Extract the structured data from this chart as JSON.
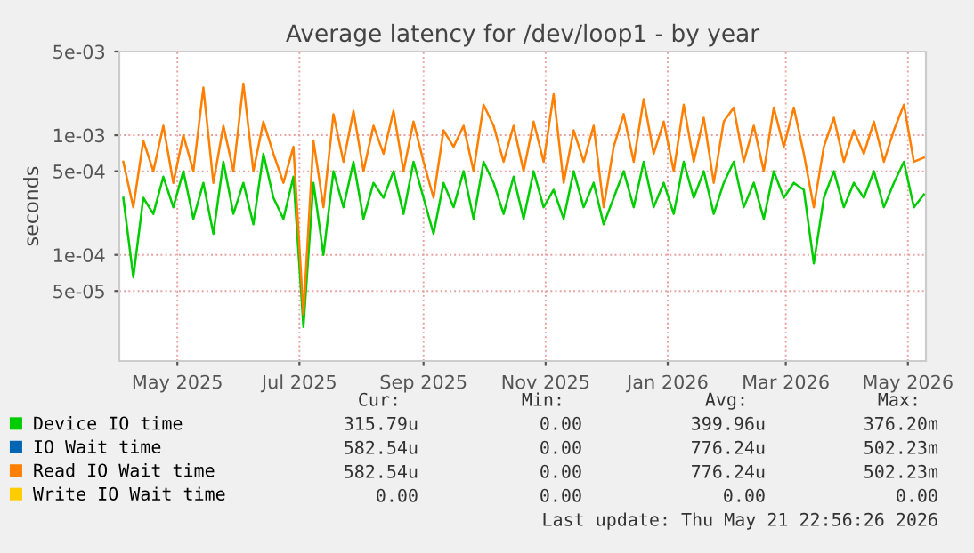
{
  "chart_data": {
    "type": "line",
    "title": "Average latency for /dev/loop1 - by year",
    "ylabel": "seconds",
    "x": [
      "2025-04-04",
      "2025-04-09",
      "2025-04-14",
      "2025-04-19",
      "2025-04-24",
      "2025-04-29",
      "2025-05-04",
      "2025-05-09",
      "2025-05-14",
      "2025-05-19",
      "2025-05-24",
      "2025-05-29",
      "2025-06-03",
      "2025-06-08",
      "2025-06-13",
      "2025-06-18",
      "2025-06-23",
      "2025-06-28",
      "2025-07-03",
      "2025-07-08",
      "2025-07-13",
      "2025-07-18",
      "2025-07-23",
      "2025-07-28",
      "2025-08-02",
      "2025-08-07",
      "2025-08-12",
      "2025-08-17",
      "2025-08-22",
      "2025-08-27",
      "2025-09-01",
      "2025-09-06",
      "2025-09-11",
      "2025-09-16",
      "2025-09-21",
      "2025-09-26",
      "2025-10-01",
      "2025-10-06",
      "2025-10-11",
      "2025-10-16",
      "2025-10-21",
      "2025-10-26",
      "2025-10-31",
      "2025-11-05",
      "2025-11-10",
      "2025-11-15",
      "2025-11-20",
      "2025-11-25",
      "2025-11-30",
      "2025-12-05",
      "2025-12-10",
      "2025-12-15",
      "2025-12-20",
      "2025-12-25",
      "2025-12-30",
      "2026-01-04",
      "2026-01-09",
      "2026-01-14",
      "2026-01-19",
      "2026-01-24",
      "2026-01-29",
      "2026-02-03",
      "2026-02-08",
      "2026-02-13",
      "2026-02-18",
      "2026-02-23",
      "2026-02-28",
      "2026-03-05",
      "2026-03-10",
      "2026-03-15",
      "2026-03-20",
      "2026-03-25",
      "2026-03-30",
      "2026-04-04",
      "2026-04-09",
      "2026-04-14",
      "2026-04-19",
      "2026-04-24",
      "2026-04-29",
      "2026-05-04",
      "2026-05-09"
    ],
    "series": [
      {
        "name": "Device IO time",
        "color": "#00cc00",
        "values": [
          0.0003,
          6.5e-05,
          0.0003,
          0.00022,
          0.00045,
          0.00025,
          0.0005,
          0.0002,
          0.0004,
          0.00015,
          0.0006,
          0.00022,
          0.0004,
          0.00018,
          0.0007,
          0.0003,
          0.0002,
          0.00045,
          2.5e-05,
          0.0004,
          0.0001,
          0.0005,
          0.00025,
          0.0006,
          0.0002,
          0.0004,
          0.0003,
          0.0005,
          0.00022,
          0.0006,
          0.0003,
          0.00015,
          0.0004,
          0.00025,
          0.0005,
          0.0002,
          0.0006,
          0.0004,
          0.00022,
          0.00045,
          0.0002,
          0.0005,
          0.00025,
          0.00035,
          0.0002,
          0.0005,
          0.00025,
          0.0004,
          0.00018,
          0.0003,
          0.0005,
          0.00025,
          0.0006,
          0.00025,
          0.0004,
          0.00022,
          0.0006,
          0.0003,
          0.0005,
          0.00022,
          0.0004,
          0.0006,
          0.00025,
          0.0004,
          0.0002,
          0.0005,
          0.0003,
          0.0004,
          0.00035,
          8.5e-05,
          0.0003,
          0.0005,
          0.00025,
          0.0004,
          0.0003,
          0.0005,
          0.00025,
          0.0004,
          0.0006,
          0.00025,
          0.00032
        ]
      },
      {
        "name": "IO Wait time",
        "color": "#0066b3",
        "values": [
          null,
          null,
          null,
          null,
          null,
          null,
          null,
          null,
          null,
          null,
          null,
          null,
          null,
          null,
          null,
          null,
          null,
          null,
          null,
          null,
          null,
          null,
          null,
          null,
          null,
          null,
          null,
          null,
          null,
          null,
          null,
          null,
          null,
          null,
          null,
          null,
          null,
          null,
          null,
          null,
          null,
          null,
          null,
          null,
          null,
          null,
          null,
          null,
          null,
          null,
          null,
          null,
          null,
          null,
          null,
          null,
          null,
          null,
          null,
          null,
          null,
          null,
          null,
          null,
          null,
          null,
          null,
          null,
          null,
          null,
          null,
          null,
          null,
          null,
          null,
          null,
          null,
          null,
          null,
          null,
          null
        ]
      },
      {
        "name": "Read IO Wait time",
        "color": "#ff7f00",
        "values": [
          0.0006,
          0.00025,
          0.0009,
          0.0005,
          0.0012,
          0.0004,
          0.001,
          0.0005,
          0.0025,
          0.0004,
          0.0012,
          0.0005,
          0.0027,
          0.0005,
          0.0013,
          0.0007,
          0.0004,
          0.0008,
          3.2e-05,
          0.0009,
          0.00025,
          0.0015,
          0.0006,
          0.0016,
          0.0005,
          0.0012,
          0.0007,
          0.0016,
          0.0005,
          0.0013,
          0.0006,
          0.0003,
          0.0011,
          0.0008,
          0.0012,
          0.0005,
          0.0018,
          0.0012,
          0.0006,
          0.0012,
          0.0005,
          0.0013,
          0.0006,
          0.0022,
          0.0004,
          0.0011,
          0.0006,
          0.0012,
          0.00025,
          0.0008,
          0.0015,
          0.0006,
          0.002,
          0.0007,
          0.0013,
          0.0005,
          0.0018,
          0.0006,
          0.0014,
          0.0004,
          0.0013,
          0.0017,
          0.0006,
          0.0012,
          0.0005,
          0.0017,
          0.0008,
          0.0017,
          0.0007,
          0.00025,
          0.0008,
          0.0014,
          0.0006,
          0.0011,
          0.0007,
          0.0013,
          0.0006,
          0.0011,
          0.0018,
          0.0006,
          0.00065
        ]
      },
      {
        "name": "Write IO Wait time",
        "color": "#ffcc00",
        "values": [
          null,
          null,
          null,
          null,
          null,
          null,
          null,
          null,
          null,
          null,
          null,
          null,
          null,
          null,
          null,
          null,
          null,
          null,
          null,
          null,
          null,
          null,
          null,
          null,
          null,
          null,
          null,
          null,
          null,
          null,
          null,
          null,
          null,
          null,
          null,
          null,
          null,
          null,
          null,
          null,
          null,
          null,
          null,
          null,
          null,
          null,
          null,
          null,
          null,
          null,
          null,
          null,
          null,
          null,
          null,
          null,
          null,
          null,
          null,
          null,
          null,
          null,
          null,
          null,
          null,
          null,
          null,
          null,
          null,
          null,
          null,
          null,
          null,
          null,
          null,
          null,
          null,
          null,
          null,
          null,
          null
        ]
      }
    ],
    "log": "y",
    "ylim": [
      1.3e-05,
      0.005
    ],
    "yticks": [
      {
        "value": 5e-05,
        "label": "5e-05"
      },
      {
        "value": 0.0001,
        "label": "1e-04"
      },
      {
        "value": 0.0005,
        "label": "5e-04"
      },
      {
        "value": 0.001,
        "label": "1e-03"
      },
      {
        "value": 0.005,
        "label": "5e-03"
      }
    ],
    "xlim": [
      "2025-04-02",
      "2026-05-10"
    ],
    "xticks": [
      {
        "value": "2025-05-01",
        "label": "May 2025"
      },
      {
        "value": "2025-07-01",
        "label": "Jul 2025"
      },
      {
        "value": "2025-09-01",
        "label": "Sep 2025"
      },
      {
        "value": "2025-11-01",
        "label": "Nov 2025"
      },
      {
        "value": "2026-01-01",
        "label": "Jan 2026"
      },
      {
        "value": "2026-03-01",
        "label": "Mar 2026"
      },
      {
        "value": "2026-05-01",
        "label": "May 2026"
      }
    ],
    "grid": true,
    "legend": "bottom",
    "marker": "none",
    "line_style": "solid",
    "annotations": [
      "Cur:",
      "Min:",
      "Avg:",
      "Max:",
      "315.79u",
      "0.00",
      "399.96u",
      "376.20m",
      "582.54u",
      "0.00",
      "776.24u",
      "502.23m",
      "582.54u",
      "0.00",
      "776.24u",
      "502.23m",
      "0.00",
      "0.00",
      "0.00",
      "0.00",
      "Last update: Thu May 21 22:56:26 2026"
    ]
  }
}
